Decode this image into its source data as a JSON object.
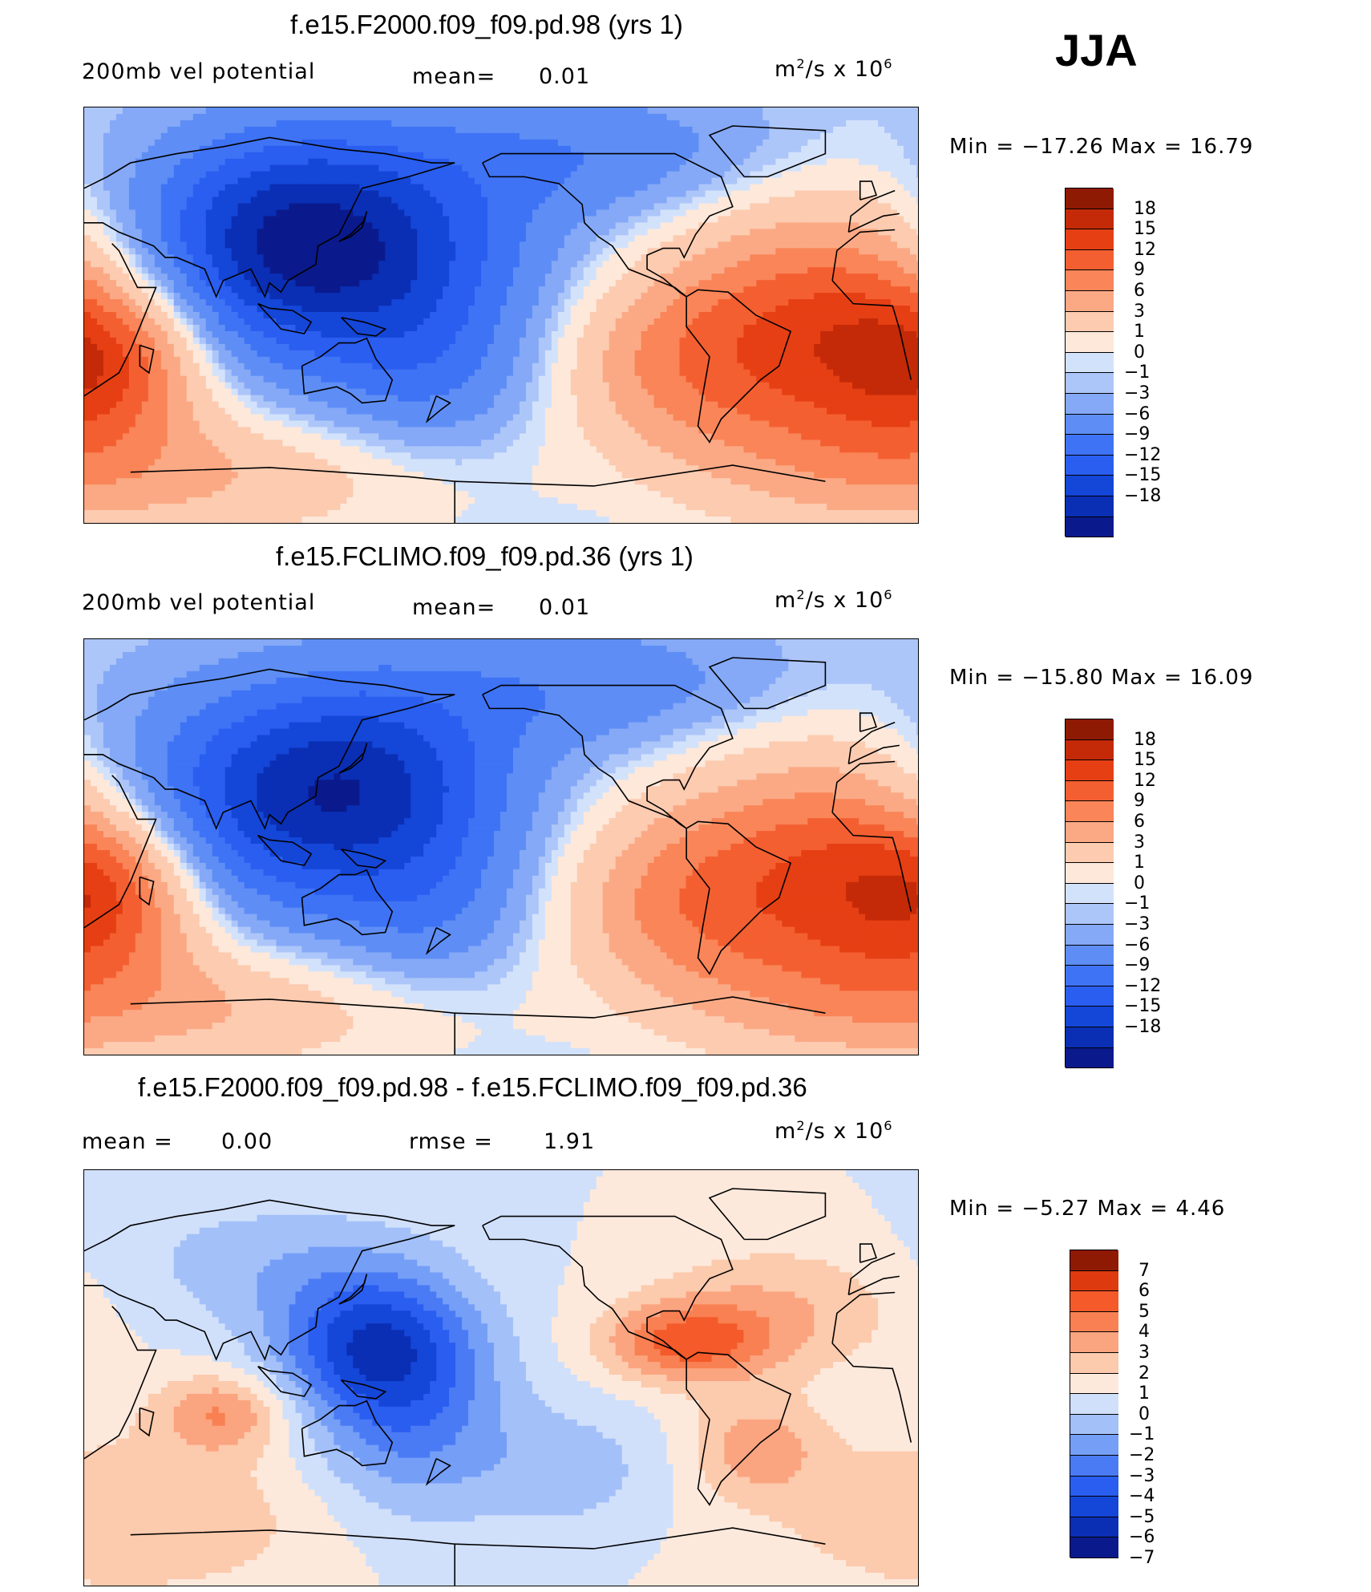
{
  "season": "JJA",
  "colors": {
    "vp": [
      "#0a1a8c",
      "#0a2fb4",
      "#1446d8",
      "#2a5ef0",
      "#3f73f5",
      "#5e8ef5",
      "#85a9f7",
      "#adc6f9",
      "#d3e2fb",
      "#fde8da",
      "#fccbb0",
      "#fba985",
      "#f98558",
      "#f45f31",
      "#e63f14",
      "#c42a08",
      "#8f1a04"
    ],
    "diff": [
      "#0a1a8c",
      "#0a2fb4",
      "#1446d8",
      "#2a5ef0",
      "#4a7bf5",
      "#759ef7",
      "#a3c0f9",
      "#d0e0fb",
      "#fde9dc",
      "#fccaad",
      "#fba480",
      "#f98052",
      "#f45a2a",
      "#dd3a10",
      "#8f1a04"
    ]
  },
  "panels": [
    {
      "title": "f.e15.F2000.f09_f09.pd.98 (yrs 1)",
      "left_label": "200mb vel potential",
      "mean_label": "mean=",
      "mean_value": "0.01",
      "units_base": "m",
      "units_sup1": "2",
      "units_mid": "/s x 10",
      "units_sup2": "6",
      "minmax": "Min = −17.26 Max =   16.79"
    },
    {
      "title": "f.e15.FCLIMO.f09_f09.pd.36 (yrs 1)",
      "left_label": "200mb vel potential",
      "mean_label": "mean=",
      "mean_value": "0.01",
      "units_base": "m",
      "units_sup1": "2",
      "units_mid": "/s x 10",
      "units_sup2": "6",
      "minmax": "Min = −15.80 Max =   16.09"
    },
    {
      "title": "f.e15.F2000.f09_f09.pd.98 - f.e15.FCLIMO.f09_f09.pd.36",
      "left_label": "mean =",
      "mean_label": "rmse =",
      "left_value": "0.00",
      "mean_value": "1.91",
      "units_base": "m",
      "units_sup1": "2",
      "units_mid": "/s x 10",
      "units_sup2": "6",
      "minmax": "Min =   −5.27 Max =     4.46"
    }
  ],
  "chart_data": [
    {
      "type": "heatmap",
      "title": "f.e15.F2000.f09_f09.pd.98 (yrs 1)",
      "variable": "200mb vel potential",
      "units": "m2/s x 10^6",
      "mean": 0.01,
      "min": -17.26,
      "max": 16.79,
      "colorbar_levels": [
        "18",
        "15",
        "12",
        "9",
        "6",
        "3",
        "1",
        "0",
        "−1",
        "−3",
        "−6",
        "−9",
        "−12",
        "−15",
        "−18"
      ],
      "centers": [
        {
          "lon": 130,
          "lat": 20,
          "value": -17.26
        },
        {
          "lon": -20,
          "lat": -10,
          "value": 16.79
        },
        {
          "lon": 30,
          "lat": -20,
          "value": 12
        }
      ]
    },
    {
      "type": "heatmap",
      "title": "f.e15.FCLIMO.f09_f09.pd.36 (yrs 1)",
      "variable": "200mb vel potential",
      "units": "m2/s x 10^6",
      "mean": 0.01,
      "min": -15.8,
      "max": 16.09,
      "colorbar_levels": [
        "18",
        "15",
        "12",
        "9",
        "6",
        "3",
        "1",
        "0",
        "−1",
        "−3",
        "−6",
        "−9",
        "−12",
        "−15",
        "−18"
      ],
      "centers": [
        {
          "lon": 110,
          "lat": 20,
          "value": -15.8
        },
        {
          "lon": -20,
          "lat": -15,
          "value": 16.09
        },
        {
          "lon": 30,
          "lat": -20,
          "value": 12
        }
      ]
    },
    {
      "type": "heatmap",
      "title": "f.e15.F2000.f09_f09.pd.98 - f.e15.FCLIMO.f09_f09.pd.36",
      "units": "m2/s x 10^6",
      "mean": 0.0,
      "rmse": 1.91,
      "min": -5.27,
      "max": 4.46,
      "colorbar_levels": [
        "7",
        "6",
        "5",
        "4",
        "3",
        "2",
        "1",
        "0",
        "−1",
        "−2",
        "−3",
        "−4",
        "−5",
        "−6",
        "−7"
      ],
      "centers": [
        {
          "lon": 145,
          "lat": 15,
          "value": -5.27
        },
        {
          "lon": -80,
          "lat": 15,
          "value": 4.46
        },
        {
          "lon": 80,
          "lat": -15,
          "value": 3
        }
      ]
    }
  ]
}
